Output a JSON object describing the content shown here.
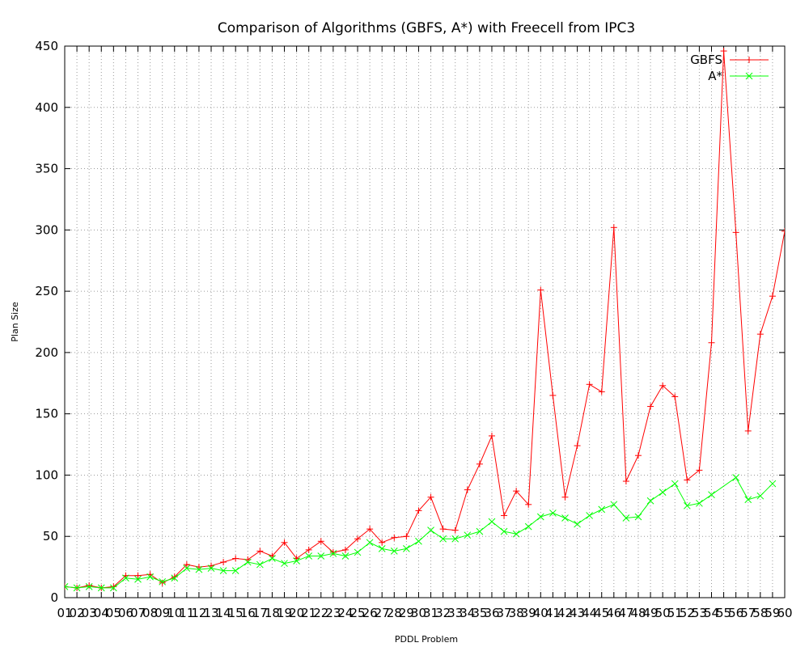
{
  "chart_data": {
    "type": "line",
    "title": "Comparison of Algorithms (GBFS, A*) with Freecell from IPC3",
    "xlabel": "PDDL Problem",
    "ylabel": "Plan Size",
    "ylim": [
      0,
      450
    ],
    "yticks": [
      0,
      50,
      100,
      150,
      200,
      250,
      300,
      350,
      400,
      450
    ],
    "grid": true,
    "legend_position": "top-right",
    "categories": [
      "01",
      "02",
      "03",
      "04",
      "05",
      "06",
      "07",
      "08",
      "09",
      "10",
      "11",
      "12",
      "13",
      "14",
      "15",
      "16",
      "17",
      "18",
      "19",
      "20",
      "21",
      "22",
      "23",
      "24",
      "25",
      "26",
      "27",
      "28",
      "29",
      "30",
      "31",
      "32",
      "33",
      "34",
      "35",
      "36",
      "37",
      "38",
      "39",
      "40",
      "41",
      "42",
      "43",
      "44",
      "45",
      "46",
      "47",
      "48",
      "49",
      "50",
      "51",
      "52",
      "53",
      "54",
      "55",
      "56",
      "57",
      "58",
      "59",
      "60"
    ],
    "series": [
      {
        "name": "GBFS",
        "color": "#ff0000",
        "marker": "plus",
        "values": [
          9,
          8,
          10,
          8,
          9,
          18,
          18,
          19,
          12,
          17,
          27,
          25,
          26,
          29,
          32,
          31,
          38,
          34,
          45,
          32,
          39,
          46,
          37,
          39,
          48,
          56,
          45,
          49,
          50,
          71,
          82,
          56,
          55,
          88,
          109,
          132,
          67,
          87,
          76,
          251,
          165,
          82,
          124,
          174,
          168,
          302,
          95,
          116,
          156,
          173,
          164,
          96,
          104,
          208,
          446,
          298,
          136,
          215,
          246,
          299
        ]
      },
      {
        "name": "A*",
        "color": "#00ff00",
        "marker": "cross",
        "values": [
          9,
          8,
          9,
          8,
          8,
          16,
          15,
          17,
          13,
          16,
          24,
          23,
          24,
          22,
          22,
          29,
          27,
          32,
          28,
          30,
          34,
          34,
          36,
          34,
          37,
          45,
          40,
          38,
          40,
          46,
          55,
          48,
          48,
          51,
          54,
          62,
          54,
          52,
          58,
          66,
          69,
          65,
          60,
          67,
          72,
          76,
          65,
          66,
          79,
          86,
          93,
          75,
          77,
          84,
          null,
          98,
          80,
          83,
          93,
          null
        ]
      }
    ]
  }
}
